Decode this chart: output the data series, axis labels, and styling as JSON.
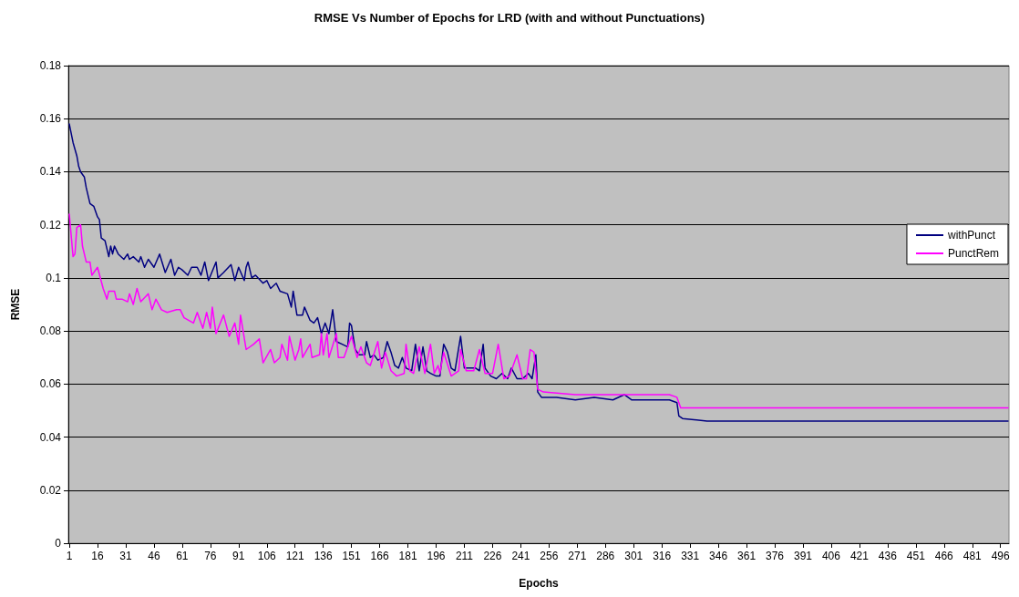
{
  "chart_data": {
    "type": "line",
    "title": "RMSE Vs Number of Epochs for LRD (with and without Punctuations)",
    "xlabel": "Epochs",
    "ylabel": "RMSE",
    "xlim": [
      0.5,
      500.5
    ],
    "xticks": [
      1,
      16,
      31,
      46,
      61,
      76,
      91,
      106,
      121,
      136,
      151,
      166,
      181,
      196,
      211,
      226,
      241,
      256,
      271,
      286,
      301,
      316,
      331,
      346,
      361,
      376,
      391,
      406,
      421,
      436,
      451,
      466,
      481,
      496
    ],
    "ylim": [
      0,
      0.18
    ],
    "yticks": [
      0,
      0.02,
      0.04,
      0.06,
      0.08,
      0.1,
      0.12,
      0.14,
      0.16,
      0.18
    ],
    "grid": "y",
    "legend": "right",
    "marker": "none",
    "line_style": "solid",
    "series": [
      {
        "name": "withPunct",
        "color": "#000080",
        "x": [
          1,
          3,
          5,
          6,
          7,
          9,
          10,
          12,
          14,
          16,
          17,
          18,
          20,
          22,
          23,
          24,
          25,
          27,
          30,
          32,
          33,
          35,
          38,
          39,
          41,
          43,
          46,
          49,
          52,
          55,
          57,
          59,
          61,
          64,
          66,
          69,
          71,
          73,
          75,
          79,
          80,
          83,
          87,
          89,
          91,
          94,
          95,
          96,
          98,
          100,
          104,
          106,
          108,
          111,
          113,
          117,
          119,
          120,
          122,
          125,
          126,
          129,
          131,
          133,
          135,
          137,
          139,
          141,
          143,
          146,
          149,
          150,
          151,
          153,
          155,
          158,
          159,
          161,
          163,
          165,
          168,
          170,
          172,
          174,
          176,
          178,
          180,
          183,
          185,
          187,
          189,
          191,
          193,
          196,
          198,
          200,
          202,
          204,
          206,
          209,
          211,
          214,
          217,
          219,
          221,
          222,
          225,
          228,
          231,
          234,
          236,
          239,
          242,
          245,
          247,
          249,
          250,
          252,
          260,
          270,
          280,
          290,
          296,
          300,
          310,
          320,
          324,
          325,
          327,
          340,
          360,
          400,
          440,
          470,
          500
        ],
        "values": [
          0.158,
          0.151,
          0.146,
          0.142,
          0.14,
          0.138,
          0.134,
          0.128,
          0.127,
          0.123,
          0.122,
          0.115,
          0.114,
          0.108,
          0.112,
          0.109,
          0.112,
          0.109,
          0.107,
          0.109,
          0.107,
          0.108,
          0.106,
          0.108,
          0.104,
          0.107,
          0.104,
          0.109,
          0.102,
          0.107,
          0.101,
          0.104,
          0.103,
          0.101,
          0.104,
          0.104,
          0.101,
          0.106,
          0.099,
          0.106,
          0.1,
          0.102,
          0.105,
          0.099,
          0.104,
          0.099,
          0.104,
          0.106,
          0.1,
          0.101,
          0.098,
          0.099,
          0.096,
          0.098,
          0.095,
          0.094,
          0.089,
          0.095,
          0.086,
          0.086,
          0.089,
          0.084,
          0.083,
          0.085,
          0.079,
          0.083,
          0.079,
          0.088,
          0.076,
          0.075,
          0.074,
          0.083,
          0.082,
          0.073,
          0.071,
          0.071,
          0.076,
          0.07,
          0.071,
          0.069,
          0.07,
          0.076,
          0.072,
          0.067,
          0.066,
          0.07,
          0.066,
          0.065,
          0.075,
          0.065,
          0.074,
          0.065,
          0.064,
          0.063,
          0.063,
          0.075,
          0.072,
          0.066,
          0.065,
          0.078,
          0.066,
          0.066,
          0.066,
          0.065,
          0.075,
          0.066,
          0.063,
          0.062,
          0.064,
          0.062,
          0.066,
          0.062,
          0.062,
          0.064,
          0.062,
          0.071,
          0.057,
          0.055,
          0.055,
          0.054,
          0.055,
          0.054,
          0.056,
          0.054,
          0.054,
          0.054,
          0.053,
          0.048,
          0.047,
          0.046,
          0.046,
          0.046,
          0.046,
          0.046,
          0.046
        ]
      },
      {
        "name": "PunctRem",
        "color": "#ff00ff",
        "x": [
          1,
          3,
          4,
          5,
          7,
          8,
          10,
          12,
          13,
          16,
          19,
          21,
          22,
          25,
          26,
          29,
          32,
          33,
          35,
          37,
          39,
          43,
          45,
          47,
          50,
          53,
          58,
          60,
          62,
          67,
          69,
          72,
          74,
          76,
          77,
          79,
          83,
          86,
          89,
          91,
          92,
          95,
          99,
          102,
          104,
          108,
          110,
          113,
          114,
          117,
          118,
          121,
          123,
          124,
          125,
          129,
          130,
          134,
          135,
          136,
          138,
          139,
          143,
          144,
          147,
          151,
          154,
          156,
          159,
          161,
          165,
          167,
          169,
          172,
          175,
          179,
          180,
          182,
          184,
          187,
          190,
          193,
          195,
          197,
          198,
          200,
          204,
          208,
          209,
          212,
          216,
          219,
          222,
          226,
          229,
          232,
          235,
          239,
          242,
          244,
          246,
          248,
          250,
          253,
          270,
          290,
          310,
          320,
          324,
          326,
          340,
          400,
          450,
          500
        ],
        "values": [
          0.124,
          0.108,
          0.109,
          0.119,
          0.12,
          0.112,
          0.106,
          0.106,
          0.101,
          0.104,
          0.096,
          0.092,
          0.095,
          0.095,
          0.092,
          0.092,
          0.091,
          0.094,
          0.09,
          0.096,
          0.091,
          0.094,
          0.088,
          0.092,
          0.088,
          0.087,
          0.088,
          0.088,
          0.085,
          0.083,
          0.087,
          0.081,
          0.087,
          0.081,
          0.089,
          0.079,
          0.086,
          0.078,
          0.083,
          0.075,
          0.086,
          0.073,
          0.075,
          0.077,
          0.068,
          0.073,
          0.068,
          0.07,
          0.075,
          0.069,
          0.078,
          0.069,
          0.073,
          0.077,
          0.07,
          0.075,
          0.07,
          0.071,
          0.079,
          0.071,
          0.079,
          0.07,
          0.079,
          0.07,
          0.07,
          0.078,
          0.07,
          0.074,
          0.068,
          0.067,
          0.076,
          0.066,
          0.072,
          0.065,
          0.063,
          0.064,
          0.075,
          0.065,
          0.064,
          0.074,
          0.064,
          0.075,
          0.064,
          0.067,
          0.064,
          0.072,
          0.063,
          0.065,
          0.073,
          0.065,
          0.065,
          0.073,
          0.064,
          0.064,
          0.075,
          0.062,
          0.063,
          0.071,
          0.062,
          0.062,
          0.073,
          0.072,
          0.058,
          0.057,
          0.056,
          0.056,
          0.056,
          0.056,
          0.055,
          0.051,
          0.051,
          0.051,
          0.051,
          0.051
        ]
      }
    ]
  }
}
